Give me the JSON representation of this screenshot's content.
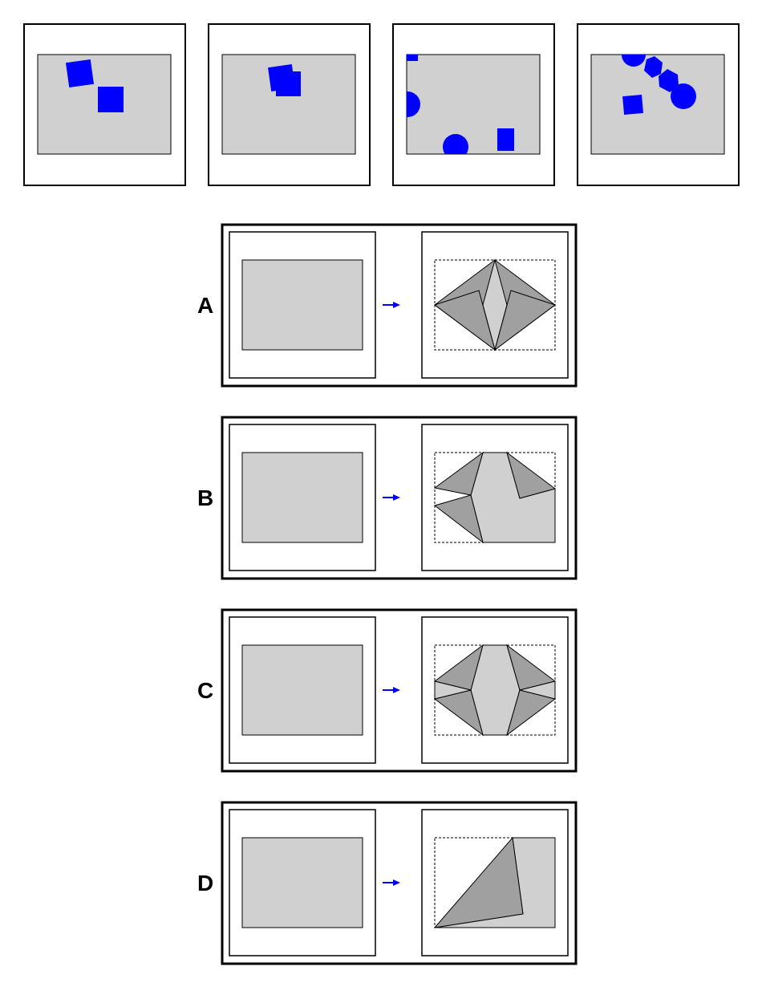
{
  "colors": {
    "shape": "#0000ff",
    "paper": "#d0d0d0",
    "fold": "#a0a0a0",
    "stroke": "#000000",
    "arrow": "#0000ff",
    "background": "#ffffff"
  },
  "option_labels": [
    "A",
    "B",
    "C",
    "D"
  ]
}
